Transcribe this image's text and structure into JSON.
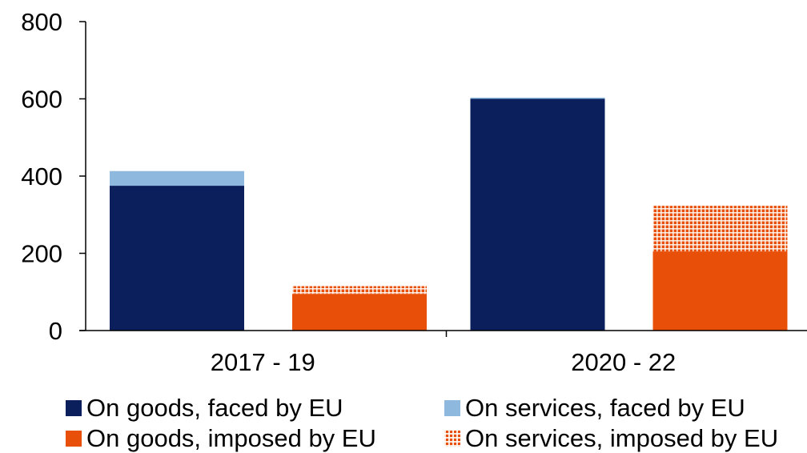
{
  "chart_data": {
    "type": "bar",
    "stacked": true,
    "categories": [
      "2017 - 19",
      "2020 - 22"
    ],
    "ylim": [
      0,
      800
    ],
    "yticks": [
      0,
      200,
      400,
      600,
      800
    ],
    "title": "",
    "xlabel": "",
    "ylabel": "",
    "legend_position": "bottom",
    "series": [
      {
        "name": "On goods, faced by EU",
        "group": "faced",
        "color": "#0a1f5c",
        "pattern": "solid",
        "values": [
          375,
          600
        ]
      },
      {
        "name": "On services, faced by EU",
        "group": "faced",
        "color": "#8fb8de",
        "pattern": "solid",
        "values": [
          38,
          3
        ]
      },
      {
        "name": "On goods, imposed by EU",
        "group": "imposed",
        "color": "#e8500a",
        "pattern": "solid",
        "values": [
          95,
          205
        ]
      },
      {
        "name": "On services, imposed by EU",
        "group": "imposed",
        "color": "#e8500a",
        "pattern": "hatch",
        "values": [
          20,
          118
        ]
      }
    ]
  },
  "legend": {
    "items": [
      "On goods, faced by EU",
      "On services, faced by EU",
      "On goods, imposed by EU",
      "On services, imposed by EU"
    ]
  }
}
